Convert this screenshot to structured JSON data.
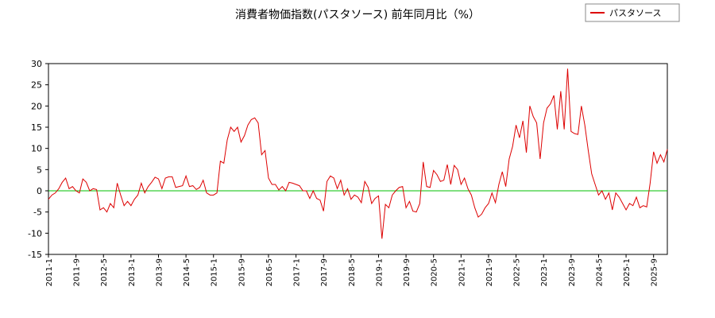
{
  "chart_data": {
    "type": "line",
    "title": "消費者物価指数(パスタソース) 前年同月比（%）",
    "categories": [
      "2011-1",
      null,
      null,
      null,
      null,
      null,
      null,
      null,
      "2011-9",
      null,
      null,
      null,
      null,
      null,
      null,
      null,
      "2012-5",
      null,
      null,
      null,
      null,
      null,
      null,
      null,
      "2013-1",
      null,
      null,
      null,
      null,
      null,
      null,
      null,
      "2013-9",
      null,
      null,
      null,
      null,
      null,
      null,
      null,
      "2014-5",
      null,
      null,
      null,
      null,
      null,
      null,
      null,
      "2015-1",
      null,
      null,
      null,
      null,
      null,
      null,
      null,
      "2015-9",
      null,
      null,
      null,
      null,
      null,
      null,
      null,
      "2016-5",
      null,
      null,
      null,
      null,
      null,
      null,
      null,
      "2017-1",
      null,
      null,
      null,
      null,
      null,
      null,
      null,
      "2017-9",
      null,
      null,
      null,
      null,
      null,
      null,
      null,
      "2018-5",
      null,
      null,
      null,
      null,
      null,
      null,
      null,
      "2019-1",
      null,
      null,
      null,
      null,
      null,
      null,
      null,
      "2019-9",
      null,
      null,
      null,
      null,
      null,
      null,
      null,
      "2020-5",
      null,
      null,
      null,
      null,
      null,
      null,
      null,
      "2021-1",
      null,
      null,
      null,
      null,
      null,
      null,
      null,
      "2021-9",
      null,
      null,
      null,
      null,
      null,
      null,
      null,
      "2022-5",
      null,
      null,
      null,
      null,
      null,
      null,
      null,
      "2023-1",
      null,
      null,
      null,
      null,
      null,
      null,
      null,
      "2023-9",
      null,
      null,
      null,
      null,
      null,
      null,
      null,
      "2024-5",
      null,
      null,
      null,
      null,
      null,
      null,
      null,
      "2025-1",
      null,
      null,
      null,
      null,
      null,
      null,
      null,
      "2025-9",
      null,
      null,
      null,
      null
    ],
    "series": [
      {
        "name": "パスタソース",
        "color": "#dd0000",
        "values": [
          -2,
          -1,
          -0.5,
          0.5,
          2,
          3,
          0.5,
          1,
          0,
          -0.5,
          2.8,
          2,
          0,
          0.5,
          0.3,
          -4.5,
          -4,
          -5,
          -3,
          -4,
          1.8,
          -1,
          -3.5,
          -2.5,
          -3.5,
          -2,
          -1,
          1.8,
          -0.5,
          1,
          2,
          3.2,
          2.8,
          0.5,
          3,
          3.3,
          3.3,
          0.8,
          1,
          1.2,
          3.5,
          1,
          1.2,
          0.3,
          0.8,
          2.5,
          -0.5,
          -1,
          -1,
          -0.5,
          7,
          6.5,
          12,
          15,
          14,
          15,
          11.5,
          13,
          15.5,
          16.8,
          17.2,
          16,
          8.5,
          9.5,
          3,
          1.5,
          1.5,
          0.2,
          1,
          0,
          2,
          1.8,
          1.5,
          1.2,
          0,
          0,
          -1.8,
          0,
          -1.8,
          -2.2,
          -4.8,
          2.2,
          3.5,
          3,
          0.5,
          2.5,
          -1,
          0.5,
          -2,
          -1,
          -1.5,
          -2.8,
          2.2,
          0.8,
          -3,
          -1.8,
          -1.2,
          -11.3,
          -3.2,
          -4,
          -1,
          0,
          0.8,
          1,
          -4,
          -2.5,
          -4.8,
          -5,
          -3,
          6.8,
          1,
          0.8,
          4.8,
          3.8,
          2.2,
          2.5,
          6.2,
          1.5,
          6,
          5,
          1.5,
          3,
          0.5,
          -1,
          -4,
          -6.2,
          -5.5,
          -4,
          -3,
          -0.5,
          -2.8,
          1.5,
          4.5,
          1,
          7.5,
          10.5,
          15.5,
          12.5,
          16.5,
          9,
          20,
          17.5,
          16,
          7.5,
          16,
          19.5,
          20.5,
          22.5,
          14.5,
          23.5,
          14.5,
          28.8,
          14,
          13.5,
          13.3,
          20,
          15.5,
          9.5,
          4,
          1.5,
          -1,
          0,
          -2,
          -0.5,
          -4.5,
          -0.5,
          -1.5,
          -3,
          -4.5,
          -3,
          -3.5,
          -1.5,
          -4,
          -3.5,
          -3.8,
          1.8,
          9.2,
          6.5,
          8.5,
          6.8,
          9.8
        ]
      }
    ],
    "ylim": [
      -15,
      30
    ],
    "yticks": [
      -15,
      -10,
      -5,
      0,
      5,
      10,
      15,
      20,
      25,
      30
    ],
    "hline": 0,
    "hline_color": "#00c000",
    "legend": "top-right"
  }
}
